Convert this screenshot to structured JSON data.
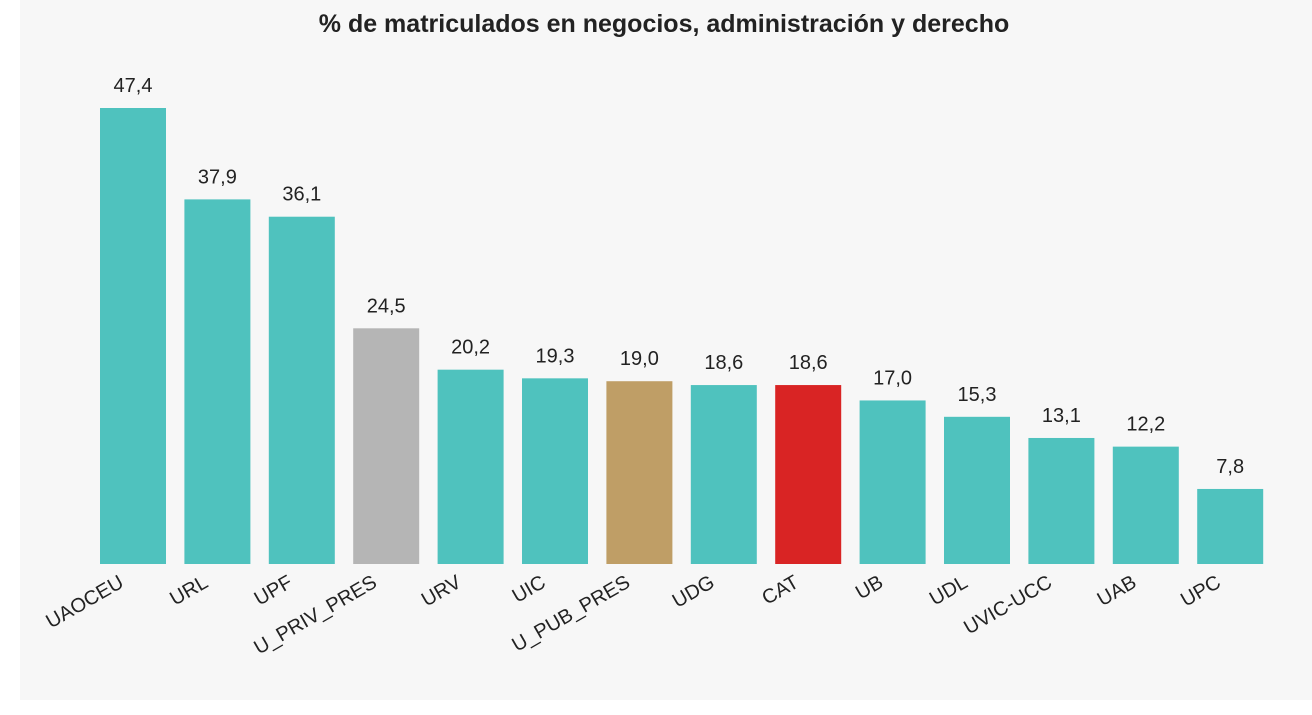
{
  "chart_data": {
    "type": "bar",
    "title": "% de matriculados en negocios, administración y derecho",
    "categories": [
      "UAOCEU",
      "URL",
      "UPF",
      "U_PRIV_PRES",
      "URV",
      "UIC",
      "U_PUB_PRES",
      "UDG",
      "CAT",
      "UB",
      "UDL",
      "UVIC-UCC",
      "UAB",
      "UPC"
    ],
    "values": [
      47.4,
      37.9,
      36.1,
      24.5,
      20.2,
      19.3,
      19.0,
      18.6,
      18.6,
      17.0,
      15.3,
      13.1,
      12.2,
      7.8
    ],
    "value_labels": [
      "47,4",
      "37,9",
      "36,1",
      "24,5",
      "20,2",
      "19,3",
      "19,0",
      "18,6",
      "18,6",
      "17,0",
      "15,3",
      "13,1",
      "12,2",
      "7,8"
    ],
    "colors": [
      "#4fc2be",
      "#4fc2be",
      "#4fc2be",
      "#b5b5b5",
      "#4fc2be",
      "#4fc2be",
      "#bf9e66",
      "#4fc2be",
      "#d92424",
      "#4fc2be",
      "#4fc2be",
      "#4fc2be",
      "#4fc2be",
      "#4fc2be"
    ]
  }
}
